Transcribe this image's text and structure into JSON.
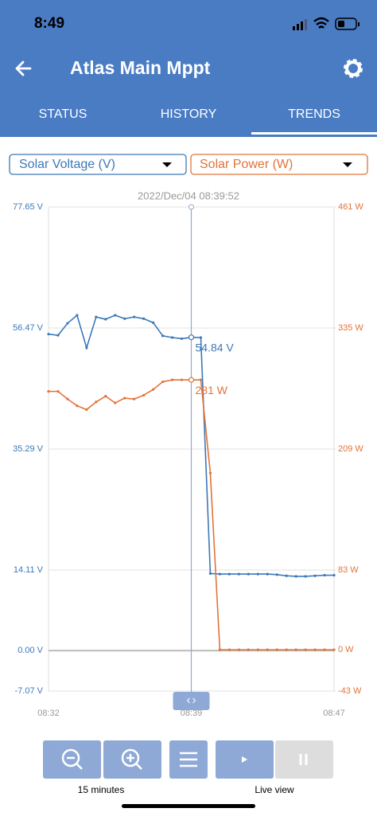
{
  "status_bar": {
    "time": "8:49"
  },
  "header": {
    "title": "Atlas Main Mppt"
  },
  "tabs": [
    "STATUS",
    "HISTORY",
    "TRENDS"
  ],
  "chart_data": {
    "type": "line",
    "annotation": "2022/Dec/04 08:39:52",
    "categories": [
      "08:32",
      null,
      null,
      null,
      null,
      null,
      null,
      null,
      null,
      null,
      null,
      null,
      null,
      null,
      null,
      "08:39",
      null,
      null,
      null,
      null,
      null,
      null,
      null,
      null,
      null,
      null,
      null,
      null,
      null,
      null,
      "08:47"
    ],
    "series": [
      {
        "name": "Solar Voltage (V)",
        "color": "#3b78b9",
        "values": [
          55.4,
          55.2,
          57.3,
          58.7,
          53.0,
          58.4,
          58.0,
          58.7,
          58.1,
          58.4,
          58.1,
          57.4,
          55.1,
          54.8,
          54.6,
          54.84,
          54.8,
          13.5,
          13.4,
          13.4,
          13.4,
          13.4,
          13.4,
          13.4,
          13.3,
          13.1,
          13.0,
          13.0,
          13.1,
          13.2,
          13.2
        ],
        "value_labels": [
          null,
          null,
          null,
          null,
          null,
          null,
          null,
          null,
          null,
          null,
          null,
          null,
          null,
          null,
          null,
          "54.84 V",
          null,
          null,
          null,
          null,
          null,
          null,
          null,
          null,
          null,
          null,
          null,
          null,
          null,
          null,
          null
        ]
      },
      {
        "name": "Solar Power (W)",
        "color": "#e2733a",
        "axis": "y2",
        "values": [
          269,
          269,
          261,
          254,
          250,
          258,
          264,
          257,
          262,
          261,
          265,
          271,
          279,
          281,
          281,
          281,
          281,
          184,
          0,
          0,
          0,
          0,
          0,
          0,
          0,
          0,
          0,
          0,
          0,
          0,
          0
        ],
        "value_labels": [
          null,
          null,
          null,
          null,
          null,
          null,
          null,
          null,
          null,
          null,
          null,
          null,
          null,
          null,
          null,
          "281 W",
          null,
          null,
          null,
          null,
          null,
          null,
          null,
          null,
          null,
          null,
          null,
          null,
          null,
          null,
          null
        ]
      }
    ],
    "ylim": [
      -7.07,
      77.65
    ],
    "yticks": [
      {
        "value": -7.07,
        "label": "-7.07 V"
      },
      {
        "value": 0,
        "label": "0.00 V"
      },
      {
        "value": 14.11,
        "label": "14.11 V"
      },
      {
        "value": 35.29,
        "label": "35.29 V"
      },
      {
        "value": 56.47,
        "label": "56.47 V"
      },
      {
        "value": 77.65,
        "label": "77.65 V"
      }
    ],
    "y2lim": [
      -43,
      461
    ],
    "y2ticks": [
      {
        "value": -43,
        "label": "-43 W"
      },
      {
        "value": 0,
        "label": "0 W"
      },
      {
        "value": 83,
        "label": "83 W"
      },
      {
        "value": 209,
        "label": "209 W"
      },
      {
        "value": 335,
        "label": "335 W"
      },
      {
        "value": 461,
        "label": "461 W"
      }
    ],
    "grid": true
  },
  "controls": {
    "zoom_label": "15 minutes",
    "live_label": "Live view"
  }
}
